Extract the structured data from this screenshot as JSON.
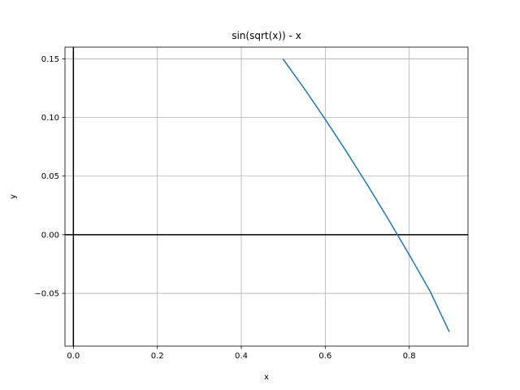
{
  "chart_data": {
    "type": "line",
    "title": "sin(sqrt(x)) - x",
    "xlabel": "x",
    "ylabel": "y",
    "xlim": [
      -0.02,
      0.94
    ],
    "ylim": [
      -0.095,
      0.16
    ],
    "grid": true,
    "xticks": [
      0.0,
      0.2,
      0.4,
      0.6,
      0.8
    ],
    "xtick_labels": [
      "0.0",
      "0.2",
      "0.4",
      "0.6",
      "0.8"
    ],
    "yticks": [
      -0.05,
      0.0,
      0.05,
      0.1,
      0.15
    ],
    "ytick_labels": [
      "−0.05",
      "0.00",
      "0.05",
      "0.10",
      "0.15"
    ],
    "reference_lines": [
      {
        "axis": "x",
        "value": 0.0,
        "color": "#000000"
      },
      {
        "axis": "y",
        "value": 0.0,
        "color": "#000000"
      }
    ],
    "series": [
      {
        "color": "#1f77b4",
        "x": [
          0.5,
          0.55,
          0.6,
          0.65,
          0.7,
          0.75,
          0.8,
          0.85,
          0.895
        ],
        "y": [
          0.1496,
          0.1246,
          0.0984,
          0.0711,
          0.0427,
          0.0133,
          -0.0171,
          -0.0484,
          -0.0825
        ]
      }
    ]
  }
}
